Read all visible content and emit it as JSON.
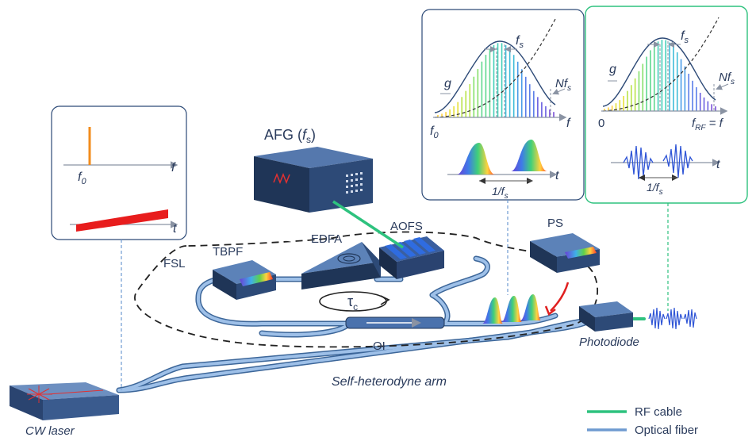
{
  "components": {
    "afg": {
      "name": "AFG (",
      "param": "f",
      "param_sub": "s",
      "close": ")"
    },
    "edfa": "EDFA",
    "aofs": "AOFS",
    "tbpf": "TBPF",
    "fsl": "FSL",
    "oi": "OI",
    "ps": "PS",
    "photodiode": "Photodiode",
    "cw_laser": "CW laser",
    "self_heterodyne_arm": "Self-heterodyne arm",
    "tau": "τ",
    "tau_sub": "c"
  },
  "panel_cw": {
    "f_axis": "f",
    "f0": "f",
    "f0_sub": "0",
    "t_axis": "t"
  },
  "panel_optical": {
    "g": "g",
    "fs": "f",
    "fs_sub": "s",
    "nfs": "Nf",
    "nfs_sub": "s",
    "f_axis": "f",
    "f0": "f",
    "f0_sub": "0",
    "t_axis": "t",
    "period": "1/f",
    "period_sub": "s"
  },
  "panel_rf": {
    "g": "g",
    "fs": "f",
    "fs_sub": "s",
    "nfs": "Nf",
    "nfs_sub": "s",
    "zero": "0",
    "frf": "f",
    "frf_sub": "RF",
    "frf_eq": " = f",
    "t_axis": "t",
    "period": "1/f",
    "period_sub": "s"
  },
  "legend": {
    "rf_cable": "RF cable",
    "optical_fiber": "Optical fiber",
    "rf_color": "#2ec27e",
    "fiber_color": "#6f9bd1"
  }
}
